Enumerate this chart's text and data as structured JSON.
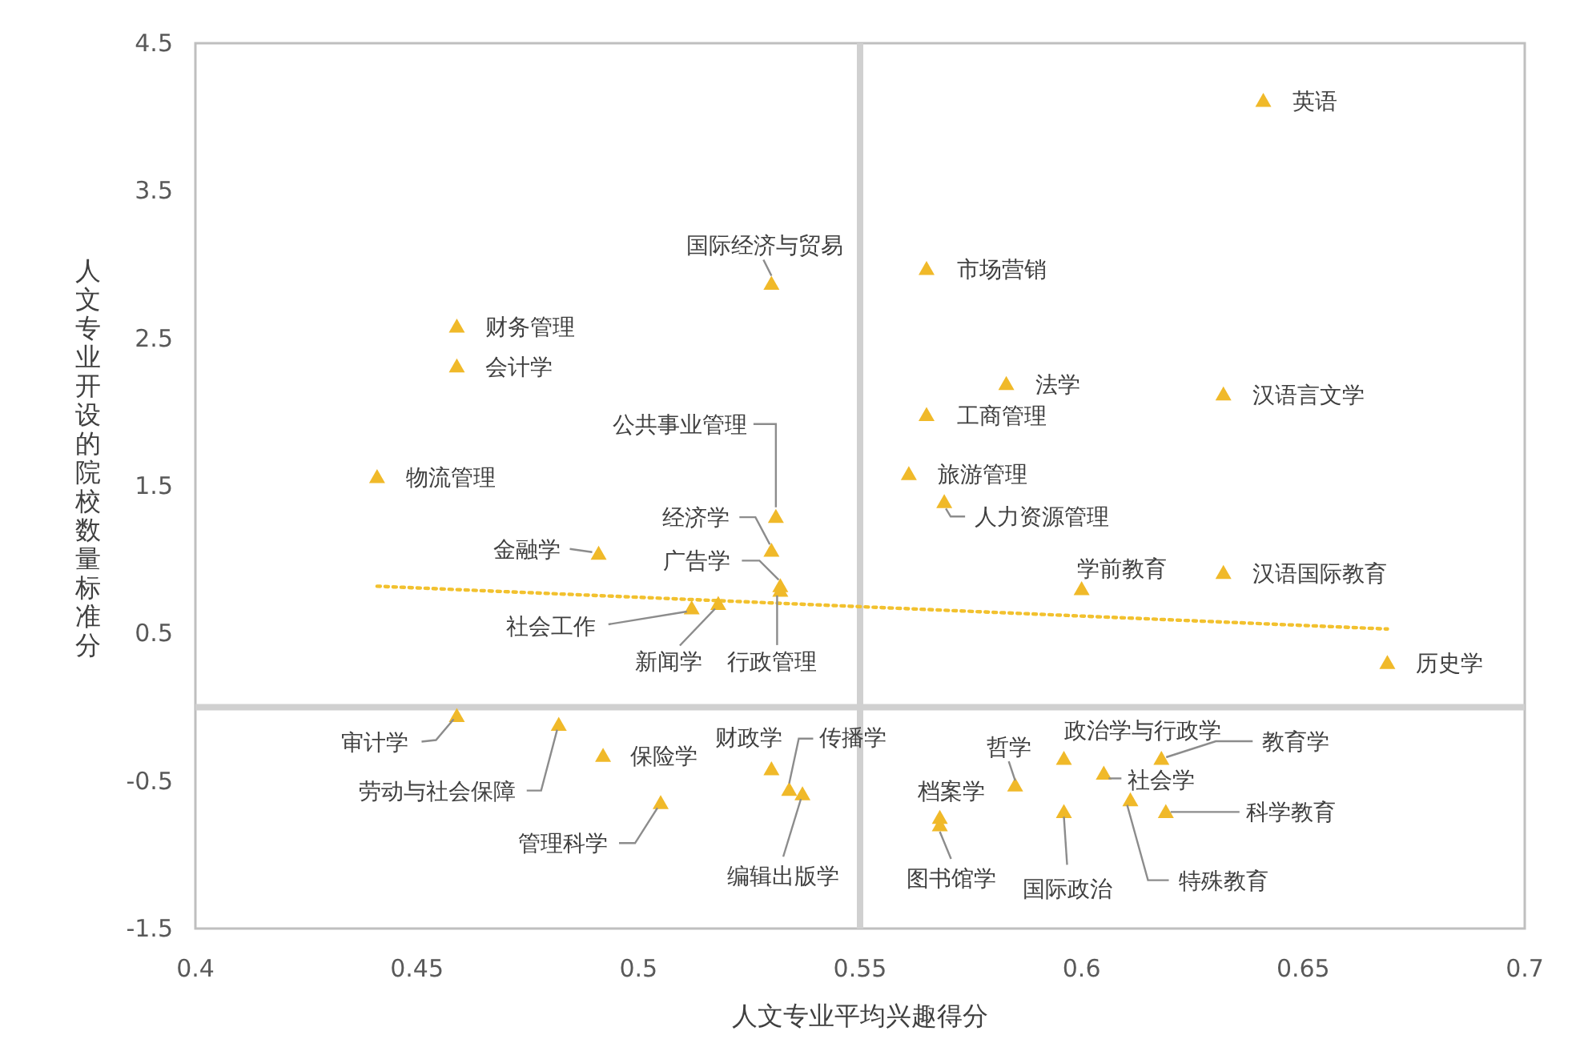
{
  "chart_data": {
    "type": "scatter",
    "xlabel": "人文专业平均兴趣得分",
    "ylabel": "人文专业开设的院校数量标准分",
    "xlim": [
      0.4,
      0.7
    ],
    "ylim": [
      -1.5,
      4.5
    ],
    "xticks": [
      0.4,
      0.45,
      0.5,
      0.55,
      0.6,
      0.65,
      0.7
    ],
    "yticks": [
      -1.5,
      -0.5,
      0.5,
      1.5,
      2.5,
      3.5,
      4.5
    ],
    "grid": false,
    "marker": "triangle",
    "ref_lines": [
      {
        "axis": "x",
        "value": 0.55,
        "color": "#d0d0d0"
      },
      {
        "axis": "y",
        "value": 0,
        "color": "#d0d0d0"
      }
    ],
    "series": [
      {
        "color": "#f0b929",
        "x": [
          0.641,
          0.565,
          0.53,
          0.459,
          0.459,
          0.583,
          0.632,
          0.565,
          0.531,
          0.441,
          0.561,
          0.569,
          0.53,
          0.491,
          0.532,
          0.532,
          0.6,
          0.632,
          0.512,
          0.518,
          0.669,
          0.459,
          0.482,
          0.492,
          0.53,
          0.534,
          0.537,
          0.505,
          0.568,
          0.568,
          0.585,
          0.596,
          0.605,
          0.596,
          0.611,
          0.618,
          0.619
        ],
        "values": [
          4.11,
          2.97,
          2.87,
          2.58,
          2.31,
          2.19,
          2.12,
          1.98,
          1.29,
          1.56,
          1.58,
          1.39,
          1.06,
          1.04,
          0.82,
          0.79,
          0.8,
          0.91,
          0.67,
          0.7,
          0.3,
          -0.06,
          -0.12,
          -0.33,
          -0.42,
          -0.56,
          -0.59,
          -0.65,
          -0.75,
          -0.8,
          -0.53,
          -0.35,
          -0.45,
          -0.71,
          -0.63,
          -0.35,
          -0.71
        ]
      },
      {
        "type": "line",
        "color": "#f2c12e",
        "line_style": "dotted",
        "marker": "none",
        "x": [
          0.441,
          0.669
        ],
        "values": [
          0.82,
          0.53
        ]
      }
    ],
    "annotations": [
      {
        "text": "英语",
        "x": 0.641,
        "y": 4.11
      },
      {
        "text": "市场营销",
        "x": 0.565,
        "y": 2.97
      },
      {
        "text": "国际经济与贸易",
        "x": 0.53,
        "y": 2.87
      },
      {
        "text": "财务管理",
        "x": 0.459,
        "y": 2.58
      },
      {
        "text": "会计学",
        "x": 0.459,
        "y": 2.31
      },
      {
        "text": "法学",
        "x": 0.583,
        "y": 2.19
      },
      {
        "text": "汉语言文学",
        "x": 0.632,
        "y": 2.12
      },
      {
        "text": "工商管理",
        "x": 0.565,
        "y": 1.98
      },
      {
        "text": "公共事业管理",
        "x": 0.531,
        "y": 1.29
      },
      {
        "text": "物流管理",
        "x": 0.441,
        "y": 1.56
      },
      {
        "text": "旅游管理",
        "x": 0.561,
        "y": 1.58
      },
      {
        "text": "人力资源管理",
        "x": 0.569,
        "y": 1.39
      },
      {
        "text": "经济学",
        "x": 0.53,
        "y": 1.06
      },
      {
        "text": "金融学",
        "x": 0.491,
        "y": 1.04
      },
      {
        "text": "广告学",
        "x": 0.532,
        "y": 0.82
      },
      {
        "text": "行政管理",
        "x": 0.532,
        "y": 0.79
      },
      {
        "text": "学前教育",
        "x": 0.6,
        "y": 0.8
      },
      {
        "text": "汉语国际教育",
        "x": 0.632,
        "y": 0.91
      },
      {
        "text": "社会工作",
        "x": 0.512,
        "y": 0.67
      },
      {
        "text": "新闻学",
        "x": 0.518,
        "y": 0.7
      },
      {
        "text": "历史学",
        "x": 0.669,
        "y": 0.3
      },
      {
        "text": "审计学",
        "x": 0.459,
        "y": -0.06
      },
      {
        "text": "劳动与社会保障",
        "x": 0.482,
        "y": -0.12
      },
      {
        "text": "保险学",
        "x": 0.492,
        "y": -0.33
      },
      {
        "text": "财政学",
        "x": 0.53,
        "y": -0.42
      },
      {
        "text": "传播学",
        "x": 0.534,
        "y": -0.56
      },
      {
        "text": "编辑出版学",
        "x": 0.537,
        "y": -0.59
      },
      {
        "text": "管理科学",
        "x": 0.505,
        "y": -0.65
      },
      {
        "text": "档案学",
        "x": 0.568,
        "y": -0.75
      },
      {
        "text": "图书馆学",
        "x": 0.568,
        "y": -0.8
      },
      {
        "text": "哲学",
        "x": 0.585,
        "y": -0.53
      },
      {
        "text": "政治学与行政学",
        "x": 0.596,
        "y": -0.35
      },
      {
        "text": "社会学",
        "x": 0.605,
        "y": -0.45
      },
      {
        "text": "国际政治",
        "x": 0.596,
        "y": -0.71
      },
      {
        "text": "特殊教育",
        "x": 0.611,
        "y": -0.63
      },
      {
        "text": "教育学",
        "x": 0.618,
        "y": -0.35
      },
      {
        "text": "科学教育",
        "x": 0.619,
        "y": -0.71
      }
    ]
  }
}
